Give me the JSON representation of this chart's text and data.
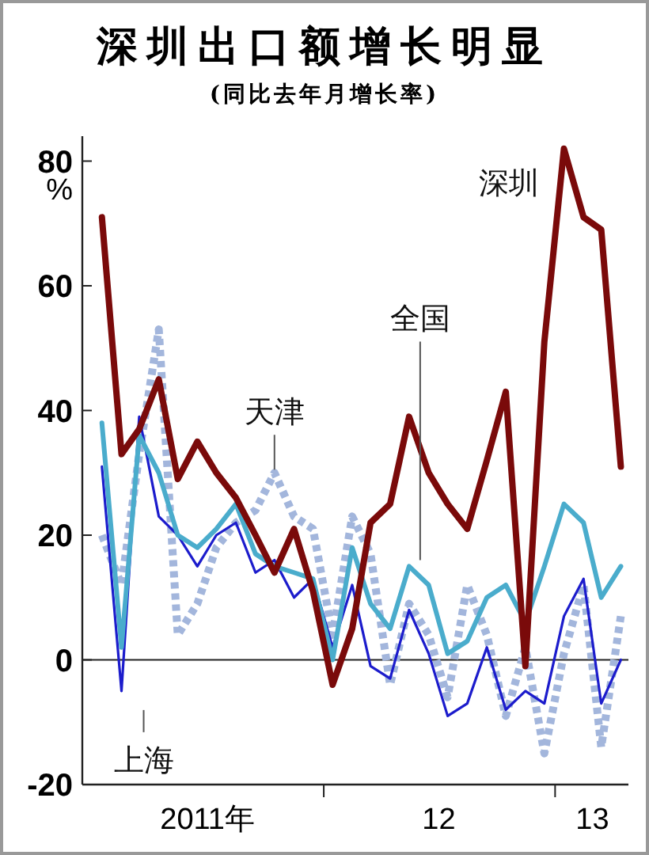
{
  "chart_data": {
    "type": "line",
    "title": "深圳出口额增长明显",
    "subtitle": "(同比去年月增长率)",
    "ylabel": "%",
    "x": [
      "2011-01-15",
      "2011-02-15",
      "2011-03-15",
      "2011-04-15",
      "2011-05-15",
      "2011-06-15",
      "2011-07-15",
      "2011-08-15",
      "2011-09-15",
      "2011-10-15",
      "2011-11-15",
      "2011-12-15",
      "2012-01-15",
      "2012-02-15",
      "2012-03-15",
      "2012-04-15",
      "2012-05-15",
      "2012-06-15",
      "2012-07-15",
      "2012-08-15",
      "2012-09-15",
      "2012-10-15",
      "2012-11-15",
      "2012-12-15",
      "2013-01-15",
      "2013-02-15",
      "2013-03-15",
      "2013-04-15"
    ],
    "series": [
      {
        "name": "天津",
        "color": "#a3b6dc",
        "line_style": "dotted",
        "values": [
          20,
          12,
          33,
          53,
          4,
          9,
          18,
          22,
          24,
          30,
          23,
          21,
          4,
          23,
          17,
          -4,
          9,
          4,
          -6,
          12,
          4,
          -9,
          2,
          -15,
          1,
          12,
          -14,
          7
        ]
      },
      {
        "name": "上海",
        "color": "#1c1ccc",
        "values": [
          31,
          -5,
          39,
          23,
          20,
          15,
          20,
          22,
          14,
          16,
          10,
          13,
          2,
          12,
          -1,
          -3,
          8,
          1,
          -9,
          -7,
          2,
          -8,
          -5,
          -7,
          7,
          13,
          -7,
          0
        ]
      },
      {
        "name": "全国",
        "color": "#4aaccc",
        "values": [
          38,
          2,
          36,
          30,
          20,
          18,
          21,
          25,
          17,
          15,
          14,
          13,
          0,
          18,
          9,
          5,
          15,
          12,
          1,
          3,
          10,
          12,
          6,
          15,
          25,
          22,
          10,
          15
        ]
      },
      {
        "name": "深圳",
        "color": "#7a0a0a",
        "values": [
          71,
          33,
          37,
          45,
          29,
          35,
          30,
          26,
          20,
          14,
          21,
          11,
          -4,
          5,
          22,
          25,
          39,
          30,
          25,
          21,
          32,
          43,
          -1,
          51,
          82,
          71,
          69,
          31
        ]
      }
    ],
    "xlim": [
      "2010-12-15",
      "2013-04-27"
    ],
    "xticks": [
      {
        "value": "2011-07-01",
        "label": "2011年"
      },
      {
        "value": "2012-01-01",
        "label": null
      },
      {
        "value": "2012-07-01",
        "label": "12"
      },
      {
        "value": "2013-01-01",
        "label": null
      },
      {
        "value": "2013-03-01",
        "label": "13"
      }
    ],
    "ylim": [
      -20,
      84
    ],
    "yticks": [
      -20,
      0,
      20,
      40,
      60,
      80
    ],
    "ref_lines": [
      {
        "axis": "y",
        "value": 0,
        "color": "#222222"
      }
    ],
    "grid": false,
    "marker": "none",
    "line_style": "solid"
  }
}
